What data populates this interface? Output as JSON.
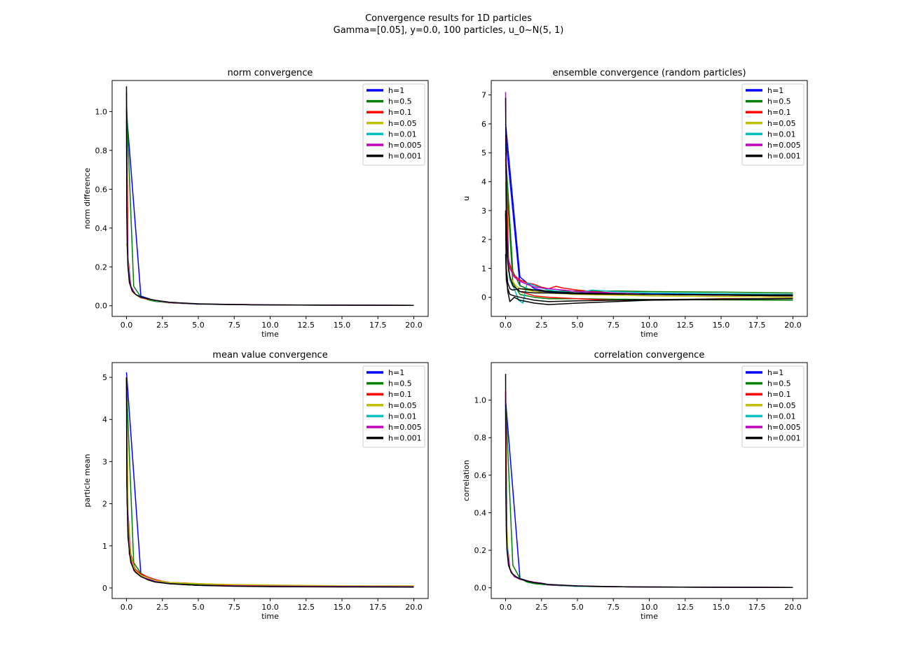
{
  "figure": {
    "suptitle_line1": "Convergence results for 1D particles",
    "suptitle_line2": "Gamma=[0.05], y=0.0, 100 particles, u_0~N(5, 1)"
  },
  "legend_colors": {
    "h=1": "#0000ff",
    "h=0.5": "#008000",
    "h=0.1": "#ff0000",
    "h=0.05": "#bfbf00",
    "h=0.01": "#00bfbf",
    "h=0.005": "#bf00bf",
    "h=0.001": "#000000"
  },
  "chart_data": [
    {
      "type": "line",
      "title": "norm convergence",
      "xlabel": "time",
      "ylabel": "norm difference",
      "xlim": [
        -1,
        21
      ],
      "ylim": [
        -0.055,
        1.16
      ],
      "xticks": [
        "0.0",
        "2.5",
        "5.0",
        "7.5",
        "10.0",
        "12.5",
        "15.0",
        "17.5",
        "20.0"
      ],
      "yticks": [
        "0.0",
        "0.2",
        "0.4",
        "0.6",
        "0.8",
        "1.0"
      ],
      "legend": "top-right",
      "series": [
        {
          "name": "h=1",
          "color": "#0000ff",
          "x": [
            0,
            1,
            2,
            3,
            5,
            10,
            20
          ],
          "y": [
            1.0,
            0.05,
            0.025,
            0.015,
            0.008,
            0.004,
            0.002
          ]
        },
        {
          "name": "h=0.5",
          "color": "#008000",
          "x": [
            0,
            0.5,
            1,
            1.5,
            2,
            3,
            5,
            10,
            20
          ],
          "y": [
            1.05,
            0.1,
            0.045,
            0.03,
            0.022,
            0.015,
            0.008,
            0.004,
            0.002
          ]
        },
        {
          "name": "h=0.1",
          "color": "#ff0000",
          "x": [
            0,
            0.1,
            0.3,
            0.5,
            1,
            2,
            3,
            5,
            10,
            20
          ],
          "y": [
            1.1,
            0.25,
            0.1,
            0.065,
            0.04,
            0.025,
            0.015,
            0.008,
            0.004,
            0.002
          ]
        },
        {
          "name": "h=0.05",
          "color": "#bfbf00",
          "x": [
            0,
            0.05,
            0.2,
            0.5,
            1,
            2,
            3,
            5,
            10,
            20
          ],
          "y": [
            0.32,
            0.3,
            0.12,
            0.065,
            0.04,
            0.025,
            0.015,
            0.008,
            0.004,
            0.002
          ]
        },
        {
          "name": "h=0.01",
          "color": "#00bfbf",
          "x": [
            0,
            0.02,
            0.1,
            0.3,
            0.6,
            1,
            2,
            3,
            5,
            10,
            20
          ],
          "y": [
            0.95,
            0.55,
            0.22,
            0.1,
            0.06,
            0.045,
            0.025,
            0.016,
            0.008,
            0.004,
            0.002
          ]
        },
        {
          "name": "h=0.005",
          "color": "#bf00bf",
          "x": [
            0,
            0.02,
            0.1,
            0.3,
            0.6,
            1,
            2,
            2.5,
            3,
            5,
            10,
            20
          ],
          "y": [
            1.02,
            0.5,
            0.2,
            0.1,
            0.06,
            0.042,
            0.028,
            0.022,
            0.016,
            0.009,
            0.004,
            0.002
          ]
        },
        {
          "name": "h=0.001",
          "color": "#000000",
          "x": [
            0,
            0.02,
            0.05,
            0.1,
            0.2,
            0.4,
            0.7,
            1,
            1.5,
            2,
            3,
            5,
            7.5,
            10,
            15,
            20
          ],
          "y": [
            1.13,
            0.48,
            0.32,
            0.2,
            0.12,
            0.075,
            0.055,
            0.045,
            0.035,
            0.028,
            0.018,
            0.01,
            0.006,
            0.004,
            0.003,
            0.002
          ]
        }
      ]
    },
    {
      "type": "line",
      "title": "ensemble convergence (random particles)",
      "xlabel": "time",
      "ylabel": "u",
      "xlim": [
        -1,
        21
      ],
      "ylim": [
        -0.66,
        7.5
      ],
      "xticks": [
        "0.0",
        "2.5",
        "5.0",
        "7.5",
        "10.0",
        "12.5",
        "15.0",
        "17.5",
        "20.0"
      ],
      "yticks": [
        "0",
        "1",
        "2",
        "3",
        "4",
        "5",
        "6",
        "7"
      ],
      "legend": "top-right",
      "series": [
        {
          "name": "h=1",
          "color": "#0000ff",
          "x": [
            0,
            1,
            2,
            3,
            5,
            10,
            20
          ],
          "y": [
            6.0,
            0.7,
            0.3,
            0.2,
            0.15,
            0.1,
            0.08
          ]
        },
        {
          "name": "h=1",
          "color": "#0000ff",
          "x": [
            0,
            1,
            2,
            5,
            10,
            20
          ],
          "y": [
            5.6,
            0.4,
            0.2,
            0.15,
            0.12,
            0.1
          ]
        },
        {
          "name": "h=0.5",
          "color": "#008000",
          "x": [
            0,
            0.5,
            1,
            1.5,
            2,
            3,
            5,
            7.5,
            10,
            15,
            20
          ],
          "y": [
            5.0,
            0.9,
            0.4,
            0.3,
            0.25,
            0.22,
            0.22,
            0.22,
            0.2,
            0.18,
            0.15
          ]
        },
        {
          "name": "h=0.5",
          "color": "#008000",
          "x": [
            0,
            0.5,
            1,
            2,
            3,
            5,
            10,
            20
          ],
          "y": [
            4.6,
            0.5,
            0.1,
            0.0,
            -0.05,
            -0.05,
            -0.08,
            -0.1
          ]
        },
        {
          "name": "h=0.1",
          "color": "#ff0000",
          "x": [
            0,
            0.2,
            0.5,
            1,
            1.5,
            2,
            2.5,
            3,
            3.5,
            4,
            5,
            6,
            7.5,
            10,
            20
          ],
          "y": [
            5.5,
            1.3,
            0.8,
            0.6,
            0.5,
            0.45,
            0.35,
            0.3,
            0.38,
            0.32,
            0.25,
            0.2,
            0.15,
            0.1,
            0.05
          ]
        },
        {
          "name": "h=0.1",
          "color": "#ff0000",
          "x": [
            0,
            0.2,
            0.5,
            1,
            2,
            3,
            5,
            7.5,
            10,
            15,
            20
          ],
          "y": [
            4.8,
            0.9,
            0.4,
            0.2,
            0.05,
            0.0,
            -0.05,
            -0.1,
            -0.1,
            -0.05,
            -0.05
          ]
        },
        {
          "name": "h=0.05",
          "color": "#bfbf00",
          "x": [
            0,
            0.1,
            0.3,
            0.7,
            1,
            2,
            3,
            5,
            10,
            20
          ],
          "y": [
            4.0,
            1.5,
            0.7,
            0.4,
            0.3,
            0.2,
            0.15,
            0.1,
            0.05,
            0.0
          ]
        },
        {
          "name": "h=0.01",
          "color": "#00bfbf",
          "x": [
            0,
            0.1,
            0.3,
            0.6,
            0.9,
            1.2,
            1.5,
            2,
            3,
            4,
            5,
            6,
            7.5,
            10,
            20
          ],
          "y": [
            5.3,
            1.5,
            0.6,
            0.3,
            -0.1,
            -0.2,
            0.5,
            0.4,
            0.25,
            0.2,
            0.15,
            0.25,
            0.2,
            0.15,
            0.1
          ]
        },
        {
          "name": "h=0.005",
          "color": "#bf00bf",
          "x": [
            0,
            0.05,
            0.15,
            0.3,
            0.6,
            1,
            1.5,
            2,
            3,
            4,
            5,
            7.5,
            10,
            20
          ],
          "y": [
            7.1,
            3.0,
            1.5,
            1.0,
            0.7,
            0.55,
            0.45,
            0.35,
            0.3,
            0.25,
            0.2,
            0.15,
            0.1,
            0.05
          ]
        },
        {
          "name": "h=0.001",
          "color": "#000000",
          "x": [
            0,
            0.05,
            0.15,
            0.3,
            0.5,
            1,
            2,
            3,
            5,
            10,
            20
          ],
          "y": [
            6.9,
            2.5,
            1.2,
            0.7,
            0.4,
            0.2,
            0.15,
            0.15,
            0.12,
            0.1,
            0.08
          ]
        },
        {
          "name": "h=0.001",
          "color": "#000000",
          "x": [
            0,
            0.05,
            0.15,
            0.3,
            0.5,
            1,
            2,
            3,
            5,
            10,
            20
          ],
          "y": [
            2.9,
            1.0,
            0.5,
            0.3,
            0.25,
            0.3,
            0.25,
            0.2,
            0.15,
            0.1,
            0.05
          ]
        },
        {
          "name": "h=0.001",
          "color": "#000000",
          "x": [
            0,
            0.05,
            0.15,
            0.3,
            0.6,
            1,
            2,
            3,
            5,
            10,
            20
          ],
          "y": [
            3.0,
            0.8,
            0.2,
            -0.15,
            0.0,
            -0.1,
            -0.2,
            -0.25,
            -0.2,
            -0.1,
            -0.05
          ]
        },
        {
          "name": "h=0.001",
          "color": "#000000",
          "x": [
            0,
            0.05,
            0.15,
            0.3,
            0.6,
            1,
            2,
            3,
            5,
            10,
            20
          ],
          "y": [
            1.5,
            0.6,
            0.3,
            0.1,
            0.05,
            0.0,
            -0.1,
            -0.15,
            -0.12,
            -0.08,
            -0.04
          ]
        }
      ]
    },
    {
      "type": "line",
      "title": "mean value convergence",
      "xlabel": "time",
      "ylabel": "particle mean",
      "xlim": [
        -1,
        21
      ],
      "ylim": [
        -0.25,
        5.35
      ],
      "xticks": [
        "0.0",
        "2.5",
        "5.0",
        "7.5",
        "10.0",
        "12.5",
        "15.0",
        "17.5",
        "20.0"
      ],
      "yticks": [
        "0",
        "1",
        "2",
        "3",
        "4",
        "5"
      ],
      "legend": "top-right",
      "series": [
        {
          "name": "h=1",
          "color": "#0000ff",
          "x": [
            0,
            1,
            2,
            3,
            5,
            10,
            20
          ],
          "y": [
            5.12,
            0.33,
            0.15,
            0.1,
            0.07,
            0.05,
            0.03
          ]
        },
        {
          "name": "h=0.5",
          "color": "#008000",
          "x": [
            0,
            0.5,
            1,
            1.5,
            2,
            3,
            5,
            10,
            20
          ],
          "y": [
            4.85,
            0.6,
            0.35,
            0.25,
            0.18,
            0.12,
            0.08,
            0.05,
            0.03
          ]
        },
        {
          "name": "h=0.1",
          "color": "#ff0000",
          "x": [
            0,
            0.1,
            0.3,
            0.6,
            1,
            1.5,
            2,
            2.5,
            3,
            4,
            5,
            7.5,
            10,
            15,
            20
          ],
          "y": [
            5.0,
            1.8,
            0.8,
            0.45,
            0.33,
            0.26,
            0.2,
            0.16,
            0.13,
            0.12,
            0.1,
            0.07,
            0.06,
            0.045,
            0.04
          ]
        },
        {
          "name": "h=0.05",
          "color": "#bfbf00",
          "x": [
            0,
            0.1,
            0.3,
            0.6,
            1,
            2,
            3,
            5,
            7.5,
            10,
            15,
            20
          ],
          "y": [
            4.9,
            1.7,
            0.75,
            0.42,
            0.3,
            0.18,
            0.13,
            0.1,
            0.08,
            0.07,
            0.05,
            0.05
          ]
        },
        {
          "name": "h=0.01",
          "color": "#00bfbf",
          "x": [
            0,
            0.05,
            0.2,
            0.5,
            1,
            2,
            3,
            5,
            10,
            20
          ],
          "y": [
            5.0,
            2.0,
            0.8,
            0.42,
            0.27,
            0.15,
            0.1,
            0.06,
            0.04,
            0.03
          ]
        },
        {
          "name": "h=0.005",
          "color": "#bf00bf",
          "x": [
            0,
            0.05,
            0.2,
            0.5,
            1,
            2,
            3,
            5,
            10,
            20
          ],
          "y": [
            5.0,
            2.0,
            0.8,
            0.42,
            0.27,
            0.15,
            0.1,
            0.06,
            0.04,
            0.03
          ]
        },
        {
          "name": "h=0.001",
          "color": "#000000",
          "x": [
            0,
            0.02,
            0.1,
            0.3,
            0.6,
            1,
            1.5,
            2,
            3,
            5,
            7.5,
            10,
            15,
            20
          ],
          "y": [
            5.0,
            2.5,
            1.2,
            0.6,
            0.38,
            0.27,
            0.19,
            0.14,
            0.1,
            0.06,
            0.04,
            0.03,
            0.025,
            0.02
          ]
        }
      ]
    },
    {
      "type": "line",
      "title": "correlation convergence",
      "xlabel": "time",
      "ylabel": "correlation",
      "xlim": [
        -1,
        21
      ],
      "ylim": [
        -0.057,
        1.2
      ],
      "xticks": [
        "0.0",
        "2.5",
        "5.0",
        "7.5",
        "10.0",
        "12.5",
        "15.0",
        "17.5",
        "20.0"
      ],
      "yticks": [
        "0.0",
        "0.2",
        "0.4",
        "0.6",
        "0.8",
        "1.0"
      ],
      "legend": "top-right",
      "series": [
        {
          "name": "h=1",
          "color": "#0000ff",
          "x": [
            0,
            1,
            2,
            3,
            5,
            10,
            20
          ],
          "y": [
            1.0,
            0.05,
            0.025,
            0.015,
            0.008,
            0.004,
            0.002
          ]
        },
        {
          "name": "h=0.5",
          "color": "#008000",
          "x": [
            0,
            0.5,
            1,
            1.5,
            2,
            3,
            5,
            10,
            20
          ],
          "y": [
            1.0,
            0.12,
            0.05,
            0.03,
            0.022,
            0.015,
            0.008,
            0.004,
            0.002
          ]
        },
        {
          "name": "h=0.1",
          "color": "#ff0000",
          "x": [
            0,
            0.1,
            0.3,
            0.5,
            1,
            2,
            3,
            5,
            10,
            20
          ],
          "y": [
            1.05,
            0.25,
            0.1,
            0.07,
            0.045,
            0.028,
            0.016,
            0.008,
            0.004,
            0.002
          ]
        },
        {
          "name": "h=0.05",
          "color": "#bfbf00",
          "x": [
            0,
            0.05,
            0.2,
            0.5,
            1,
            2,
            3,
            5,
            10,
            20
          ],
          "y": [
            0.65,
            0.4,
            0.12,
            0.07,
            0.045,
            0.028,
            0.016,
            0.008,
            0.004,
            0.002
          ]
        },
        {
          "name": "h=0.01",
          "color": "#00bfbf",
          "x": [
            0,
            0.02,
            0.1,
            0.3,
            0.6,
            1,
            2,
            3,
            5,
            10,
            20
          ],
          "y": [
            0.98,
            0.55,
            0.22,
            0.1,
            0.06,
            0.045,
            0.028,
            0.016,
            0.008,
            0.004,
            0.002
          ]
        },
        {
          "name": "h=0.005",
          "color": "#bf00bf",
          "x": [
            0,
            0.02,
            0.1,
            0.3,
            0.6,
            1,
            2,
            2.5,
            3,
            5,
            7.5,
            10,
            20
          ],
          "y": [
            1.05,
            0.5,
            0.2,
            0.1,
            0.06,
            0.045,
            0.03,
            0.025,
            0.016,
            0.01,
            0.006,
            0.004,
            0.002
          ]
        },
        {
          "name": "h=0.001",
          "color": "#000000",
          "x": [
            0,
            0.02,
            0.05,
            0.1,
            0.2,
            0.4,
            0.7,
            1,
            1.5,
            2,
            3,
            5,
            7.5,
            10,
            15,
            20
          ],
          "y": [
            1.14,
            0.5,
            0.3,
            0.2,
            0.12,
            0.08,
            0.06,
            0.048,
            0.036,
            0.028,
            0.018,
            0.01,
            0.006,
            0.004,
            0.003,
            0.002
          ]
        }
      ]
    }
  ]
}
